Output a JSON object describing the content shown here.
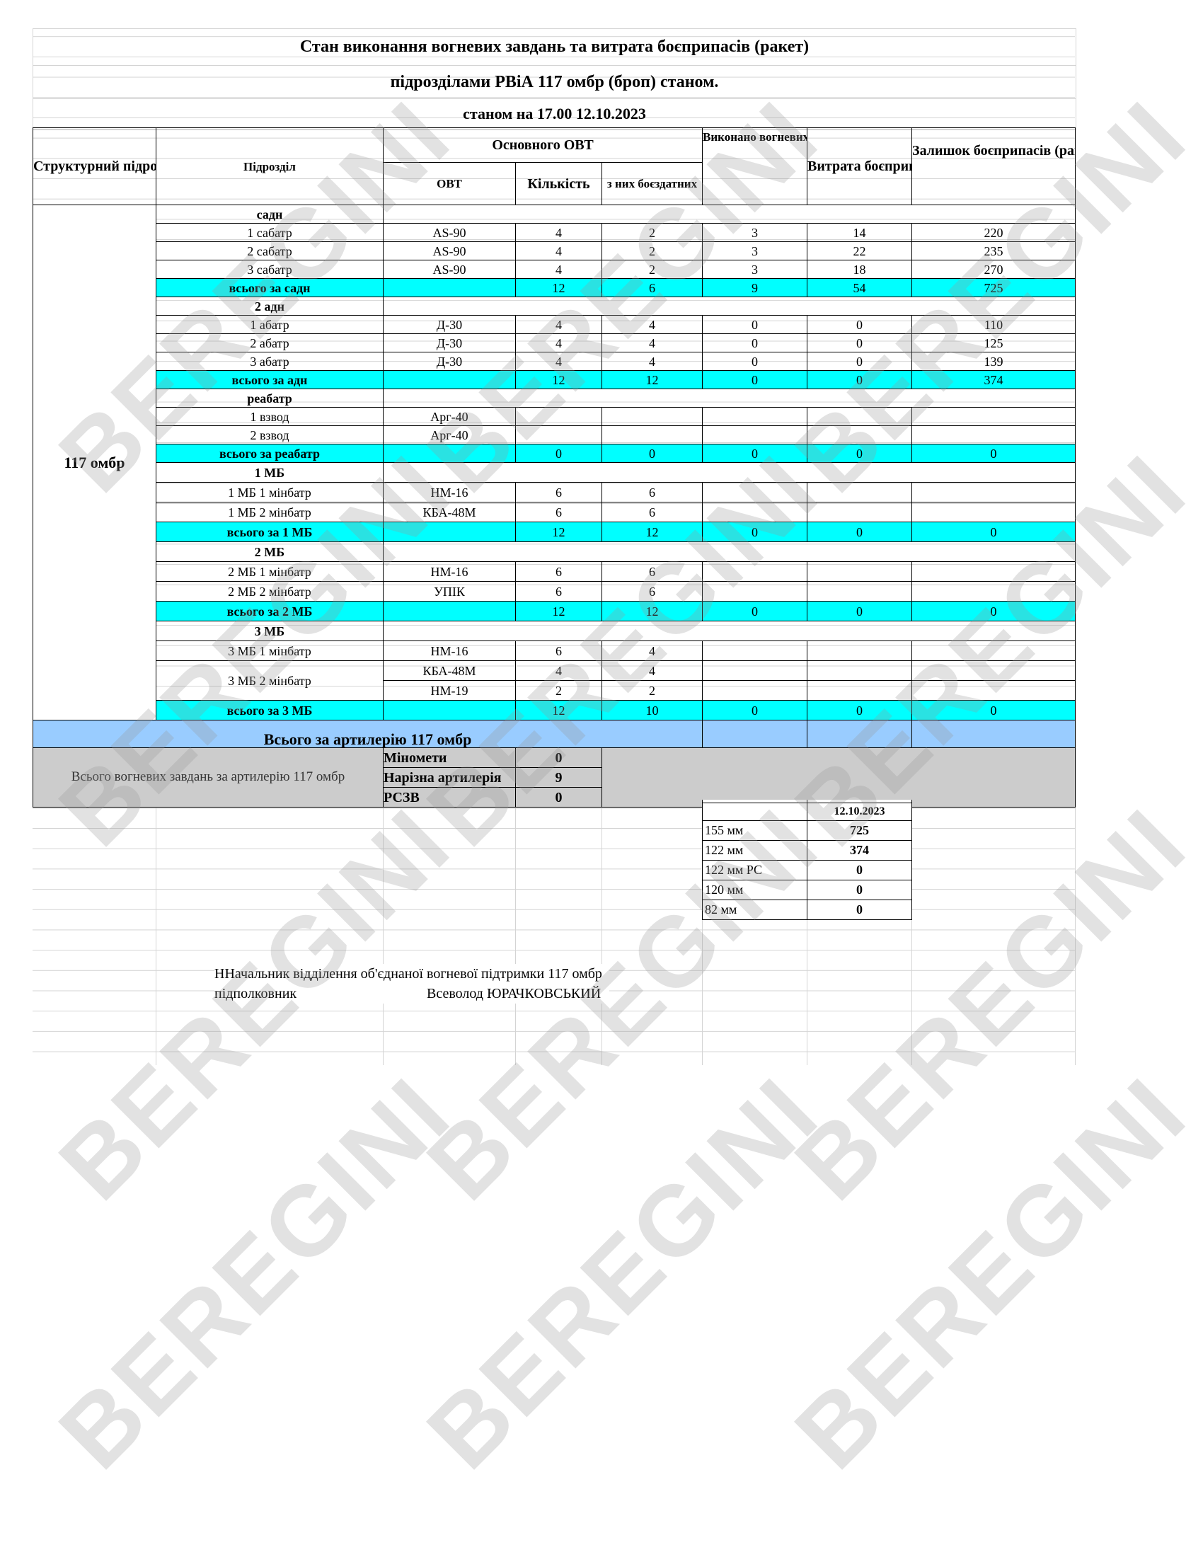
{
  "title_line1": "Стан виконання вогневих завдань та витрата боєприпасів (ракет)",
  "title_line2": "підрозділами РВіА 117 омбр (броп) станом.",
  "title_line3": "станом на 17.00  12.10.2023",
  "headers": {
    "structural_unit": "Структурний підрозділ",
    "subunit": "Підрозділ",
    "main_ovt": "Основного ОВТ",
    "ovt": "ОВТ",
    "quantity": "Кількість",
    "combat_ready": "з них боєздатних",
    "tasks_done": "Виконано вогневих завдань за добу",
    "ammo_spent": "Витрата боєприпасів (ракет)",
    "ammo_remaining": "Залишок  боєприпасів (ракет)"
  },
  "unit_name": "117 омбр",
  "rows": [
    {
      "type": "group",
      "label": "садн"
    },
    {
      "type": "unit",
      "label": "1 сабатр",
      "ovt": "AS-90",
      "qty": "4",
      "ready": "2",
      "tasks": "3",
      "spent": "14",
      "remain": "220"
    },
    {
      "type": "unit",
      "label": "2 сабатр",
      "ovt": "AS-90",
      "qty": "4",
      "ready": "2",
      "tasks": "3",
      "spent": "22",
      "remain": "235"
    },
    {
      "type": "unit",
      "label": "3 сабатр",
      "ovt": "AS-90",
      "qty": "4",
      "ready": "2",
      "tasks": "3",
      "spent": "18",
      "remain": "270"
    },
    {
      "type": "total",
      "label": "всього за садн",
      "ovt": "",
      "qty": "12",
      "ready": "6",
      "tasks": "9",
      "spent": "54",
      "remain": "725"
    },
    {
      "type": "group",
      "label": "2 адн"
    },
    {
      "type": "unit",
      "label": "1 абатр",
      "ovt": "Д-30",
      "qty": "4",
      "ready": "4",
      "tasks": "0",
      "spent": "0",
      "remain": "110"
    },
    {
      "type": "unit",
      "label": "2 абатр",
      "ovt": "Д-30",
      "qty": "4",
      "ready": "4",
      "tasks": "0",
      "spent": "0",
      "remain": "125"
    },
    {
      "type": "unit",
      "label": "3 абатр",
      "ovt": "Д-30",
      "qty": "4",
      "ready": "4",
      "tasks": "0",
      "spent": "0",
      "remain": "139"
    },
    {
      "type": "total",
      "label": "всього за адн",
      "ovt": "",
      "qty": "12",
      "ready": "12",
      "tasks": "0",
      "spent": "0",
      "remain": "374"
    },
    {
      "type": "group",
      "label": "реабатр"
    },
    {
      "type": "unit",
      "label": "1 взвод",
      "ovt": "Арг-40",
      "qty": "",
      "ready": "",
      "tasks": "",
      "spent": "",
      "remain": ""
    },
    {
      "type": "unit",
      "label": "2 взвод",
      "ovt": "Арг-40",
      "qty": "",
      "ready": "",
      "tasks": "",
      "spent": "",
      "remain": ""
    },
    {
      "type": "total",
      "label": "всього за реабатр",
      "ovt": "",
      "qty": "0",
      "ready": "0",
      "tasks": "0",
      "spent": "0",
      "remain": "0"
    },
    {
      "type": "group",
      "label": "1 МБ"
    },
    {
      "type": "unit",
      "label": "1 МБ 1 мінбатр",
      "ovt": "НМ-16",
      "qty": "6",
      "ready": "6",
      "tasks": "",
      "spent": "",
      "remain": ""
    },
    {
      "type": "unit",
      "label": "1 МБ 2 мінбатр",
      "ovt": "КБА-48М",
      "qty": "6",
      "ready": "6",
      "tasks": "",
      "spent": "",
      "remain": ""
    },
    {
      "type": "total",
      "label": "всього за 1 МБ",
      "ovt": "",
      "qty": "12",
      "ready": "12",
      "tasks": "0",
      "spent": "0",
      "remain": "0"
    },
    {
      "type": "group",
      "label": "2 МБ"
    },
    {
      "type": "unit",
      "label": "2 МБ 1 мінбатр",
      "ovt": "НМ-16",
      "qty": "6",
      "ready": "6",
      "tasks": "",
      "spent": "",
      "remain": ""
    },
    {
      "type": "unit",
      "label": "2 МБ 2 мінбатр",
      "ovt": "УПІК",
      "qty": "6",
      "ready": "6",
      "tasks": "",
      "spent": "",
      "remain": ""
    },
    {
      "type": "total",
      "label": "всього за 2 МБ",
      "ovt": "",
      "qty": "12",
      "ready": "12",
      "tasks": "0",
      "spent": "0",
      "remain": "0"
    },
    {
      "type": "group",
      "label": "3 МБ"
    },
    {
      "type": "unit",
      "label": "3 МБ 1 мінбатр",
      "ovt": "НМ-16",
      "qty": "6",
      "ready": "4",
      "tasks": "",
      "spent": "",
      "remain": ""
    },
    {
      "type": "unit",
      "label": "3 МБ 2 мінбатр",
      "span": 2,
      "ovt": "КБА-48М",
      "qty": "4",
      "ready": "4",
      "tasks": "",
      "spent": "",
      "remain": ""
    },
    {
      "type": "cont",
      "ovt": "НМ-19",
      "qty": "2",
      "ready": "2",
      "tasks": "",
      "spent": "",
      "remain": ""
    },
    {
      "type": "total",
      "label": "всього за 3 МБ",
      "ovt": "",
      "qty": "12",
      "ready": "10",
      "tasks": "0",
      "spent": "0",
      "remain": "0"
    }
  ],
  "artillery_total_label": "Всього за артилерію 117 омбр",
  "summary": {
    "label": "Всього вогневих завдань за артилерію 117 омбр",
    "items": [
      {
        "name": "Міномети",
        "value": "0"
      },
      {
        "name": "Нарізна артилерія",
        "value": "9"
      },
      {
        "name": "РСЗВ",
        "value": "0"
      }
    ]
  },
  "ammo_table": {
    "date": "12.10.2023",
    "rows": [
      {
        "caliber": "155 мм",
        "value": "725"
      },
      {
        "caliber": "122 мм",
        "value": "374"
      },
      {
        "caliber": "122 мм  РС",
        "value": "0"
      },
      {
        "caliber": "120 мм",
        "value": "0"
      },
      {
        "caliber": "82 мм",
        "value": "0"
      }
    ]
  },
  "signature": {
    "position": "ННачальник відділення об'єднаної вогневої підтримки 117 омбр",
    "rank": "підполковник",
    "name": "Всеволод ЮРАЧКОВСЬКИЙ"
  },
  "watermark": "BEREGINI",
  "colors": {
    "total_row": "#00ffff",
    "artillery_row": "#99ccff",
    "summary_bg": "#cccccc"
  }
}
